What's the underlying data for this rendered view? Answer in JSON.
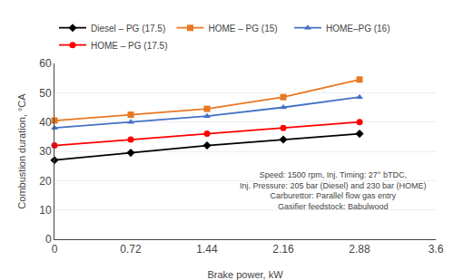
{
  "chart_data": {
    "type": "line",
    "x": [
      0,
      0.72,
      1.44,
      2.16,
      2.88
    ],
    "series": [
      {
        "name": "Diesel – PG (17.5)",
        "color": "#000000",
        "marker": "diamond",
        "values": [
          27,
          29.5,
          32,
          34,
          36
        ]
      },
      {
        "name": "HOME – PG (15)",
        "color": "#E87722",
        "marker": "square",
        "values": [
          40.5,
          42.5,
          44.5,
          48.5,
          54.5
        ]
      },
      {
        "name": "HOME–PG (16)",
        "color": "#4472C4",
        "marker": "triangle-up",
        "values": [
          38,
          40,
          42,
          45,
          48.5
        ]
      },
      {
        "name": "HOME – PG (17.5)",
        "color": "#FF0000",
        "marker": "circle",
        "values": [
          32,
          34,
          36,
          38,
          40
        ]
      }
    ],
    "x_label": "Brake power, kW",
    "y_label": "Combustion duration, °CA",
    "xlim": [
      0,
      3.6
    ],
    "ylim": [
      0,
      60
    ],
    "xticks": [
      0,
      0.72,
      1.44,
      2.16,
      2.88,
      3.6
    ],
    "yticks": [
      0,
      10,
      20,
      30,
      40,
      50,
      60
    ],
    "grid": "y",
    "legend": "top",
    "annotation": [
      "Speed: 1500 rpm, Inj. Timing: 27° bTDC,",
      "Inj. Pressure: 205 bar (Diesel) and 230 bar (HOME)",
      "Carburettor: Parallel flow gas entry",
      "Gasifier feedstock: Babulwood"
    ]
  }
}
